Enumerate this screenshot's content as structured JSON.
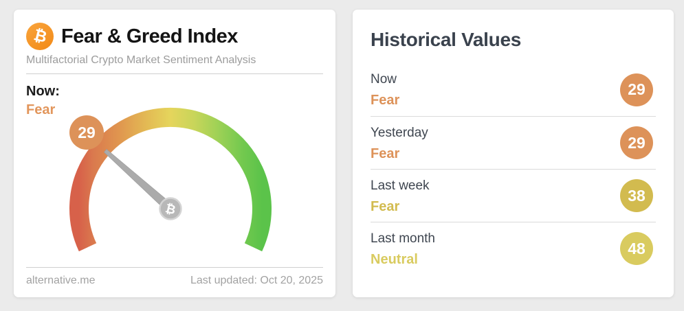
{
  "left_card": {
    "title": "Fear & Greed Index",
    "subtitle": "Multifactorial Crypto Market Sentiment Analysis",
    "bitcoin_glyph": "₿",
    "now_label": "Now:",
    "now_value": "Fear",
    "now_color": "#e2965c",
    "gauge_badge_value": "29",
    "gauge_badge_color": "#dd9259",
    "footer": {
      "source": "alternative.me",
      "last_updated": "Last updated: Oct 20, 2025"
    }
  },
  "right_card": {
    "title": "Historical Values",
    "rows": [
      {
        "label": "Now",
        "value": "Fear",
        "score": "29",
        "color": "#dd9259"
      },
      {
        "label": "Yesterday",
        "value": "Fear",
        "score": "29",
        "color": "#dd9259"
      },
      {
        "label": "Last week",
        "value": "Fear",
        "score": "38",
        "color": "#d2bb4f"
      },
      {
        "label": "Last month",
        "value": "Neutral",
        "score": "48",
        "color": "#d9cb5f"
      }
    ]
  },
  "chart_data": {
    "type": "gauge",
    "title": "Fear & Greed Index",
    "value": 29,
    "min": 0,
    "max": 100,
    "classification": "Fear",
    "arc_start_deg": 205,
    "arc_sweep_deg": 230,
    "color_scale": [
      "#d7614a",
      "#da7a4e",
      "#e0964f",
      "#e3ba54",
      "#e5d55c",
      "#c8d55a",
      "#9ed156",
      "#74c94f",
      "#5bc34a"
    ],
    "historical": [
      {
        "label": "Now",
        "classification": "Fear",
        "value": 29
      },
      {
        "label": "Yesterday",
        "classification": "Fear",
        "value": 29
      },
      {
        "label": "Last week",
        "classification": "Fear",
        "value": 38
      },
      {
        "label": "Last month",
        "classification": "Neutral",
        "value": 48
      }
    ]
  }
}
